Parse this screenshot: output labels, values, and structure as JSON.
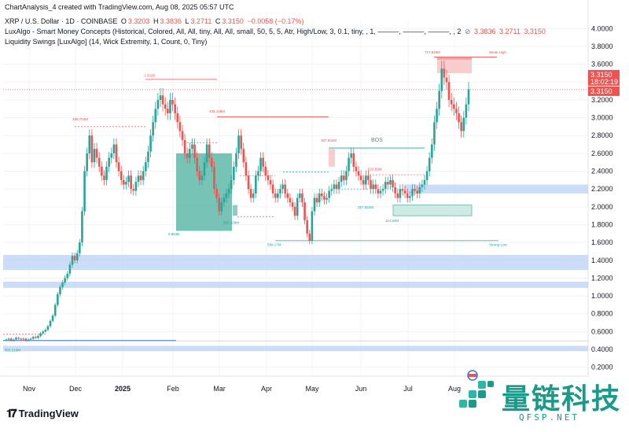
{
  "header": {
    "created": "ChartAnalysis_4 created with TradingView.com, Aug 08, 2025 05:57 UTC",
    "symbol": "XRP / U.S. Dollar · 1D · COINBASE",
    "o_label": "O",
    "o_value": "3.3203",
    "h_label": "H",
    "h_value": "3.3836",
    "l_label": "L",
    "l_value": "3.2711",
    "c_label": "C",
    "c_value": "3.3150",
    "change": "−0.0058 (−0.17%)",
    "indicator1": "LuxAlgo - Smart Money Concepts (Historical, Colored, All, All, tiny, All, All, small, 50, 5, 5, Atr, High/Low, 3, 0.1, tiny, , 1, ———, ———, ———, , 2",
    "indicator1_values": [
      "3.3836",
      "3.2711",
      "3.3150"
    ],
    "indicator2": "Liquidity Swings [LuxAlgo] (14, Wick Extremity, 1, Count, 0, Tiny)"
  },
  "colors": {
    "up": "#26a69a",
    "down": "#ef5350",
    "zone_blue": "#b7cff5",
    "zone_green": "#5fb8a8",
    "price_tag": "#ef5350"
  },
  "price_tag": {
    "price": "3.3150",
    "countdown": "18:02:19",
    "price2": "3.3150"
  },
  "labels": {
    "weak_high": "Weak High",
    "strong_low": "Strong Low",
    "bos_big": "BOS",
    "vol_1332": "1.332B",
    "vol_498": "498.704M",
    "vol_435": "435.148M",
    "vol_367": "367.604M",
    "vol_717": "717.825M",
    "vol_633": "633.83M",
    "vol_5963": "5.963B",
    "vol_856": "856.308M",
    "vol_599": "599.17M",
    "vol_257": "257.552M",
    "vol_114": "114.84M",
    "vol_302": "302.218M"
  },
  "brand": "TradingView",
  "watermark": {
    "main": "量链科技",
    "sub": "QFSP.NET"
  },
  "chart_data": {
    "type": "candlestick",
    "title": "XRP / U.S. Dollar · 1D · COINBASE",
    "y_ticks": [
      "4.0000",
      "3.8000",
      "3.6000",
      "3.4000",
      "3.2000",
      "3.0000",
      "2.8000",
      "2.6000",
      "2.4000",
      "2.2000",
      "2.0000",
      "1.8000",
      "1.6000",
      "1.4000",
      "1.2000",
      "1.0000",
      "0.8000",
      "0.6000",
      "0.4000",
      "0.2000"
    ],
    "y_range": [
      0.1,
      4.1
    ],
    "x_ticks": [
      "Nov",
      "Dec",
      "2025",
      "Feb",
      "Mar",
      "Apr",
      "May",
      "Jun",
      "Jul",
      "Aug"
    ],
    "x_tick_bold": [
      false,
      false,
      true,
      false,
      false,
      false,
      false,
      false,
      false,
      false
    ],
    "grid": true,
    "last_close": 3.315,
    "closes": [
      0.51,
      0.52,
      0.5,
      0.51,
      0.53,
      0.52,
      0.51,
      0.52,
      0.5,
      0.51,
      0.52,
      0.54,
      0.53,
      0.55,
      0.58,
      0.6,
      0.62,
      0.66,
      0.72,
      0.78,
      0.9,
      1.02,
      1.1,
      1.15,
      1.2,
      1.25,
      1.35,
      1.45,
      1.4,
      1.48,
      1.6,
      1.95,
      2.4,
      2.6,
      2.8,
      2.5,
      2.65,
      2.55,
      2.45,
      2.35,
      2.3,
      2.45,
      2.55,
      2.6,
      2.7,
      2.5,
      2.4,
      2.3,
      2.25,
      2.28,
      2.35,
      2.2,
      2.18,
      2.28,
      2.35,
      2.3,
      2.4,
      2.5,
      2.62,
      2.8,
      2.95,
      3.1,
      3.2,
      3.25,
      3.15,
      3.1,
      3.05,
      3.2,
      3.15,
      3.05,
      2.95,
      2.85,
      2.75,
      2.6,
      2.55,
      2.65,
      2.7,
      2.55,
      2.4,
      2.3,
      2.35,
      2.5,
      2.7,
      2.55,
      2.45,
      2.2,
      2.1,
      1.95,
      2.05,
      2.1,
      2.15,
      2.2,
      2.3,
      2.45,
      2.6,
      2.8,
      2.65,
      2.5,
      2.35,
      2.2,
      2.1,
      2.15,
      2.35,
      2.4,
      2.55,
      2.45,
      2.35,
      2.3,
      2.25,
      2.15,
      2.1,
      2.15,
      2.2,
      2.25,
      2.15,
      2.1,
      2.05,
      2.0,
      1.9,
      2.1,
      2.15,
      2.05,
      1.85,
      1.7,
      1.62,
      1.95,
      2.1,
      2.05,
      2.15,
      2.12,
      2.08,
      2.1,
      2.18,
      2.2,
      2.25,
      2.2,
      2.28,
      2.35,
      2.3,
      2.4,
      2.55,
      2.6,
      2.45,
      2.4,
      2.35,
      2.3,
      2.25,
      2.35,
      2.3,
      2.2,
      2.25,
      2.2,
      2.15,
      2.18,
      2.2,
      2.28,
      2.25,
      2.3,
      2.22,
      2.15,
      2.1,
      2.2,
      2.18,
      2.15,
      2.1,
      2.12,
      2.2,
      2.18,
      2.15,
      2.22,
      2.25,
      2.3,
      2.4,
      2.55,
      2.7,
      2.95,
      3.1,
      3.3,
      3.55,
      3.45,
      3.4,
      3.2,
      3.15,
      3.1,
      3.05,
      2.95,
      2.85,
      3.0,
      3.15,
      3.32
    ]
  }
}
